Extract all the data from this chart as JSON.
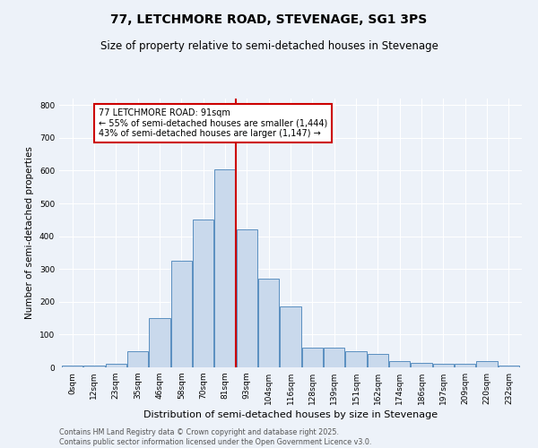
{
  "title": "77, LETCHMORE ROAD, STEVENAGE, SG1 3PS",
  "subtitle": "Size of property relative to semi-detached houses in Stevenage",
  "xlabel": "Distribution of semi-detached houses by size in Stevenage",
  "ylabel": "Number of semi-detached properties",
  "bar_labels": [
    "0sqm",
    "12sqm",
    "23sqm",
    "35sqm",
    "46sqm",
    "58sqm",
    "70sqm",
    "81sqm",
    "93sqm",
    "104sqm",
    "116sqm",
    "128sqm",
    "139sqm",
    "151sqm",
    "162sqm",
    "174sqm",
    "186sqm",
    "197sqm",
    "209sqm",
    "220sqm",
    "232sqm"
  ],
  "bar_values": [
    5,
    5,
    10,
    50,
    150,
    325,
    450,
    605,
    420,
    270,
    185,
    60,
    60,
    50,
    40,
    20,
    15,
    10,
    10,
    20,
    5
  ],
  "bar_color": "#c9d9ec",
  "bar_edgecolor": "#5a8fc0",
  "vline_x": 7.5,
  "vline_color": "#cc0000",
  "annotation_text": "77 LETCHMORE ROAD: 91sqm\n← 55% of semi-detached houses are smaller (1,444)\n43% of semi-detached houses are larger (1,147) →",
  "annotation_box_color": "#ffffff",
  "annotation_box_edgecolor": "#cc0000",
  "ylim": [
    0,
    820
  ],
  "yticks": [
    0,
    100,
    200,
    300,
    400,
    500,
    600,
    700,
    800
  ],
  "bg_color": "#edf2f9",
  "plot_bg_color": "#edf2f9",
  "footer_text": "Contains HM Land Registry data © Crown copyright and database right 2025.\nContains public sector information licensed under the Open Government Licence v3.0.",
  "title_fontsize": 10,
  "subtitle_fontsize": 8.5,
  "xlabel_fontsize": 8,
  "ylabel_fontsize": 7.5,
  "tick_fontsize": 6.5,
  "footer_fontsize": 5.8,
  "annotation_fontsize": 7.0
}
